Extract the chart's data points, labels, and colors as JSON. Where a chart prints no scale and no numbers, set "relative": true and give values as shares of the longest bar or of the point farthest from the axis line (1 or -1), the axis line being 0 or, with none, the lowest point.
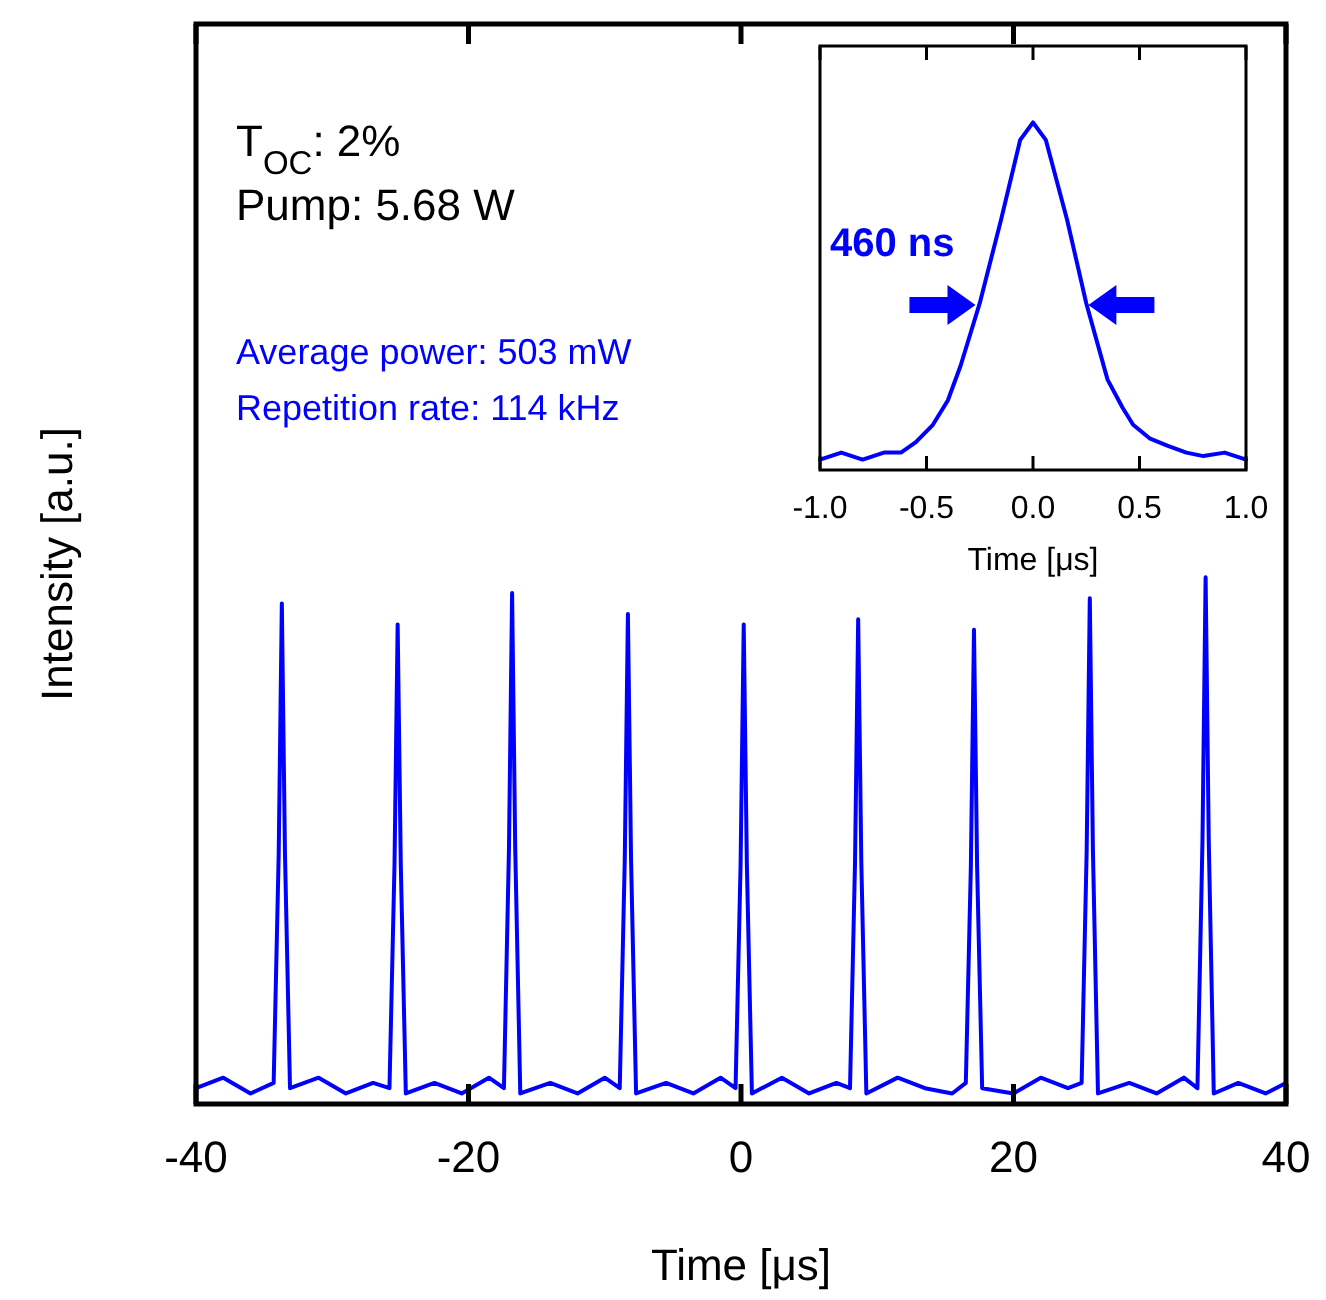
{
  "chart_data": [
    {
      "type": "line",
      "xlabel": "Time [μs]",
      "ylabel": "Intensity [a.u.]",
      "relative": true,
      "xlim": [
        -40,
        40
      ],
      "xticks": [
        -40,
        -20,
        0,
        20,
        40
      ],
      "annotations": [
        "T$_{OC}$: 2%",
        "Pump: 5.68 W",
        "Average power: 503 mW",
        "Repetition rate: 114 kHz"
      ],
      "x": [
        -40,
        -38,
        -36,
        -34.3,
        -33.93,
        -33.7,
        -33.47,
        -33.1,
        -31,
        -29,
        -27,
        -25.8,
        -25.43,
        -25.2,
        -24.97,
        -24.6,
        -22.5,
        -20.5,
        -18.5,
        -17.4,
        -17.03,
        -16.8,
        -16.57,
        -16.2,
        -14,
        -12,
        -10,
        -8.9,
        -8.53,
        -8.3,
        -8.07,
        -7.7,
        -5.5,
        -3.5,
        -1.5,
        -0.4,
        -0.03,
        0.2,
        0.43,
        0.8,
        3,
        5,
        7,
        8.0,
        8.37,
        8.6,
        8.83,
        9.2,
        11.5,
        13.5,
        15.5,
        16.5,
        16.87,
        17.1,
        17.33,
        17.7,
        20,
        22,
        24,
        25.0,
        25.37,
        25.6,
        25.83,
        26.2,
        28.5,
        30.5,
        32.5,
        33.5,
        33.87,
        34.1,
        34.33,
        34.7,
        36.5,
        38.5,
        40
      ],
      "series": [
        {
          "color": "#0000ff",
          "values": [
            0.03,
            0.05,
            0.02,
            0.04,
            0.475,
            0.95,
            0.475,
            0.03,
            0.05,
            0.02,
            0.04,
            0.03,
            0.455,
            0.91,
            0.455,
            0.02,
            0.04,
            0.02,
            0.05,
            0.03,
            0.485,
            0.97,
            0.485,
            0.02,
            0.04,
            0.02,
            0.05,
            0.03,
            0.465,
            0.93,
            0.465,
            0.02,
            0.04,
            0.02,
            0.05,
            0.03,
            0.455,
            0.91,
            0.455,
            0.02,
            0.05,
            0.02,
            0.04,
            0.03,
            0.46,
            0.92,
            0.46,
            0.02,
            0.05,
            0.03,
            0.02,
            0.04,
            0.45,
            0.9,
            0.45,
            0.03,
            0.02,
            0.05,
            0.03,
            0.04,
            0.48,
            0.96,
            0.48,
            0.02,
            0.04,
            0.02,
            0.05,
            0.03,
            0.5,
            1.0,
            0.5,
            0.02,
            0.04,
            0.02,
            0.04
          ]
        }
      ]
    },
    {
      "type": "line",
      "xlabel": "Time [μs]",
      "relative": true,
      "xlim": [
        -1,
        1
      ],
      "xticks": [
        {
          "value": -1,
          "label": "-1.0"
        },
        {
          "value": -0.5,
          "label": "-0.5"
        },
        {
          "value": 0,
          "label": "0.0"
        },
        {
          "value": 0.5,
          "label": "0.5"
        },
        {
          "value": 1,
          "label": "1.0"
        }
      ],
      "annotations": [
        "460 ns"
      ],
      "x": [
        -1,
        -0.9,
        -0.8,
        -0.7,
        -0.62,
        -0.55,
        -0.47,
        -0.4,
        -0.34,
        -0.25,
        -0.15,
        -0.06,
        0,
        0.06,
        0.16,
        0.25,
        0.35,
        0.42,
        0.47,
        0.55,
        0.63,
        0.72,
        0.8,
        0.9,
        1
      ],
      "series": [
        {
          "color": "#0000ff",
          "values": [
            0.03,
            0.05,
            0.03,
            0.05,
            0.05,
            0.08,
            0.13,
            0.2,
            0.3,
            0.48,
            0.72,
            0.95,
            1.0,
            0.95,
            0.72,
            0.48,
            0.26,
            0.18,
            0.13,
            0.09,
            0.07,
            0.05,
            0.04,
            0.05,
            0.03
          ]
        }
      ]
    }
  ]
}
